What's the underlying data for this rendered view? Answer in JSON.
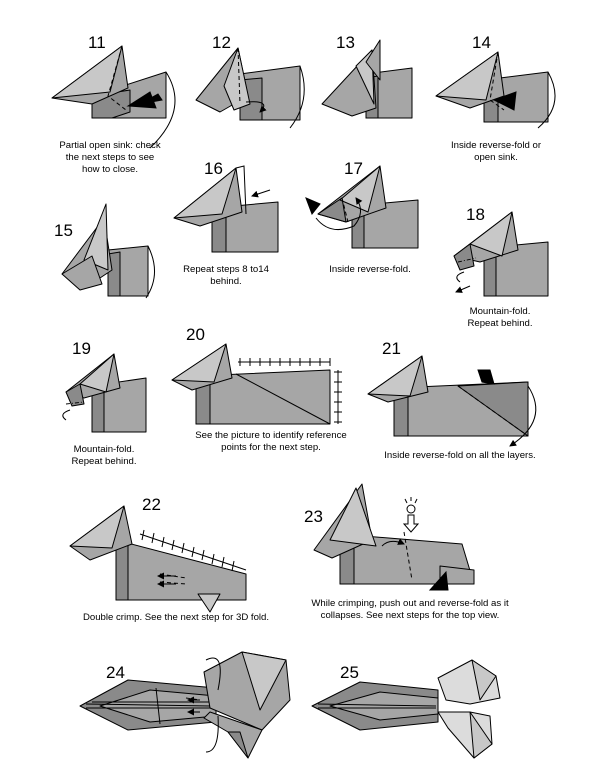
{
  "steps": [
    {
      "num": "11",
      "caption": [
        "Partial open sink: check",
        "the next steps to see",
        "how to close."
      ]
    },
    {
      "num": "12",
      "caption": []
    },
    {
      "num": "13",
      "caption": []
    },
    {
      "num": "14",
      "caption": [
        "Inside reverse-fold or",
        "open sink."
      ]
    },
    {
      "num": "15",
      "caption": []
    },
    {
      "num": "16",
      "caption": [
        "Repeat steps 8 to14",
        "behind."
      ]
    },
    {
      "num": "17",
      "caption": [
        "Inside reverse-fold."
      ]
    },
    {
      "num": "18",
      "caption": [
        "Mountain-fold.",
        "Repeat behind."
      ]
    },
    {
      "num": "19",
      "caption": [
        "Mountain-fold.",
        "Repeat behind."
      ]
    },
    {
      "num": "20",
      "caption": [
        "See the picture to identify reference",
        "points for the next step."
      ]
    },
    {
      "num": "21",
      "caption": [
        "Inside reverse-fold on all the layers."
      ]
    },
    {
      "num": "22",
      "caption": [
        "Double crimp. See the next step for 3D fold."
      ]
    },
    {
      "num": "23",
      "caption": [
        "While crimping, push out and reverse-fold as it",
        "collapses. See next steps for the top view."
      ]
    },
    {
      "num": "24",
      "caption": []
    },
    {
      "num": "25",
      "caption": []
    }
  ]
}
